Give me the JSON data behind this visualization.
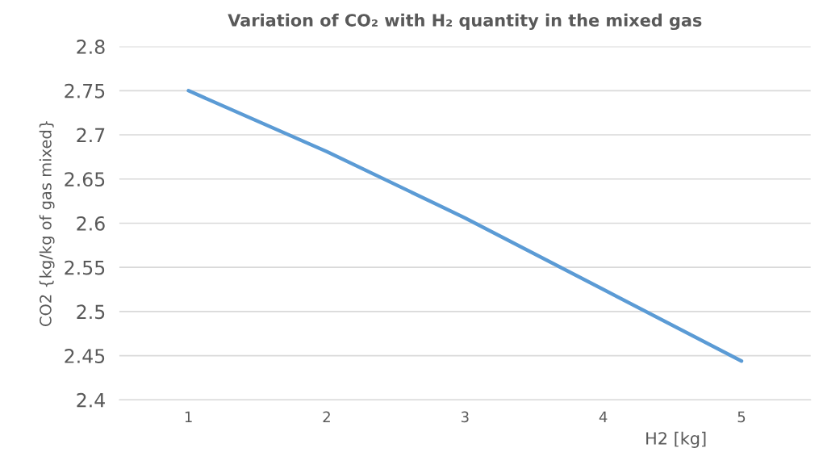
{
  "chart_data": {
    "type": "line",
    "title": "Variation of CO₂ with H₂ quantity in the mixed gas",
    "xlabel": "H2 [kg]",
    "ylabel": "CO2 {kg/kg of gas mixed}",
    "categories": [
      "1",
      "2",
      "3",
      "4",
      "5"
    ],
    "series": [
      {
        "color": "#5b9bd5",
        "values": [
          2.75,
          2.681,
          2.606,
          2.525,
          2.444
        ]
      }
    ],
    "ylim": [
      2.4,
      2.8
    ],
    "yticks": [
      2.4,
      2.45,
      2.5,
      2.55,
      2.6,
      2.65,
      2.7,
      2.75,
      2.8
    ],
    "grid": "y",
    "marker": "none",
    "line_style": "solid"
  }
}
